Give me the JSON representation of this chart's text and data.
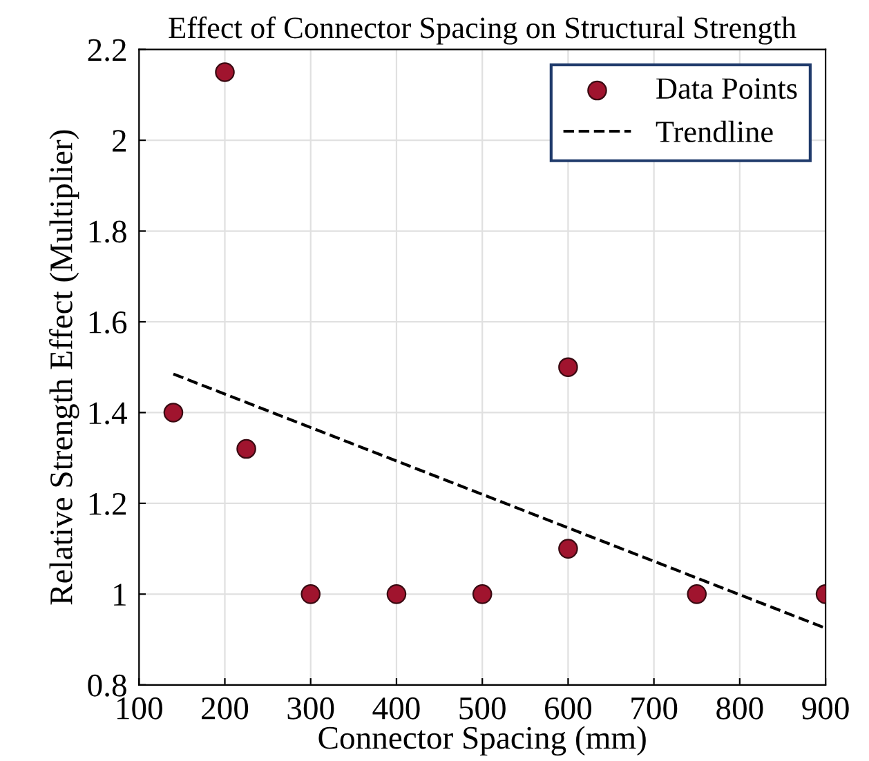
{
  "chart_data": {
    "type": "scatter",
    "title": "Effect of Connector Spacing on Structural Strength",
    "xlabel": "Connector Spacing (mm)",
    "ylabel": "Relative Strength Effect (Multiplier)",
    "series": [
      {
        "name": "Data Points",
        "color": "#a0142e",
        "marker": "circle",
        "x": [
          140,
          200,
          225,
          300,
          400,
          500,
          600,
          600,
          750,
          900
        ],
        "values": [
          1.4,
          2.15,
          1.32,
          1.0,
          1.0,
          1.0,
          1.5,
          1.1,
          1.0,
          1.0
        ]
      },
      {
        "name": "Trendline",
        "type": "line",
        "color": "#000000",
        "line_style": "dashed",
        "marker": "none",
        "x": [
          140,
          900
        ],
        "values": [
          1.485,
          0.925
        ]
      }
    ],
    "xlim": [
      100,
      900
    ],
    "xticks": [
      100,
      200,
      300,
      400,
      500,
      600,
      700,
      800,
      900
    ],
    "ylim": [
      0.8,
      2.2
    ],
    "yticks": [
      0.8,
      1,
      1.2,
      1.4,
      1.6,
      1.8,
      2,
      2.2
    ],
    "grid": true,
    "legend": "top right"
  }
}
